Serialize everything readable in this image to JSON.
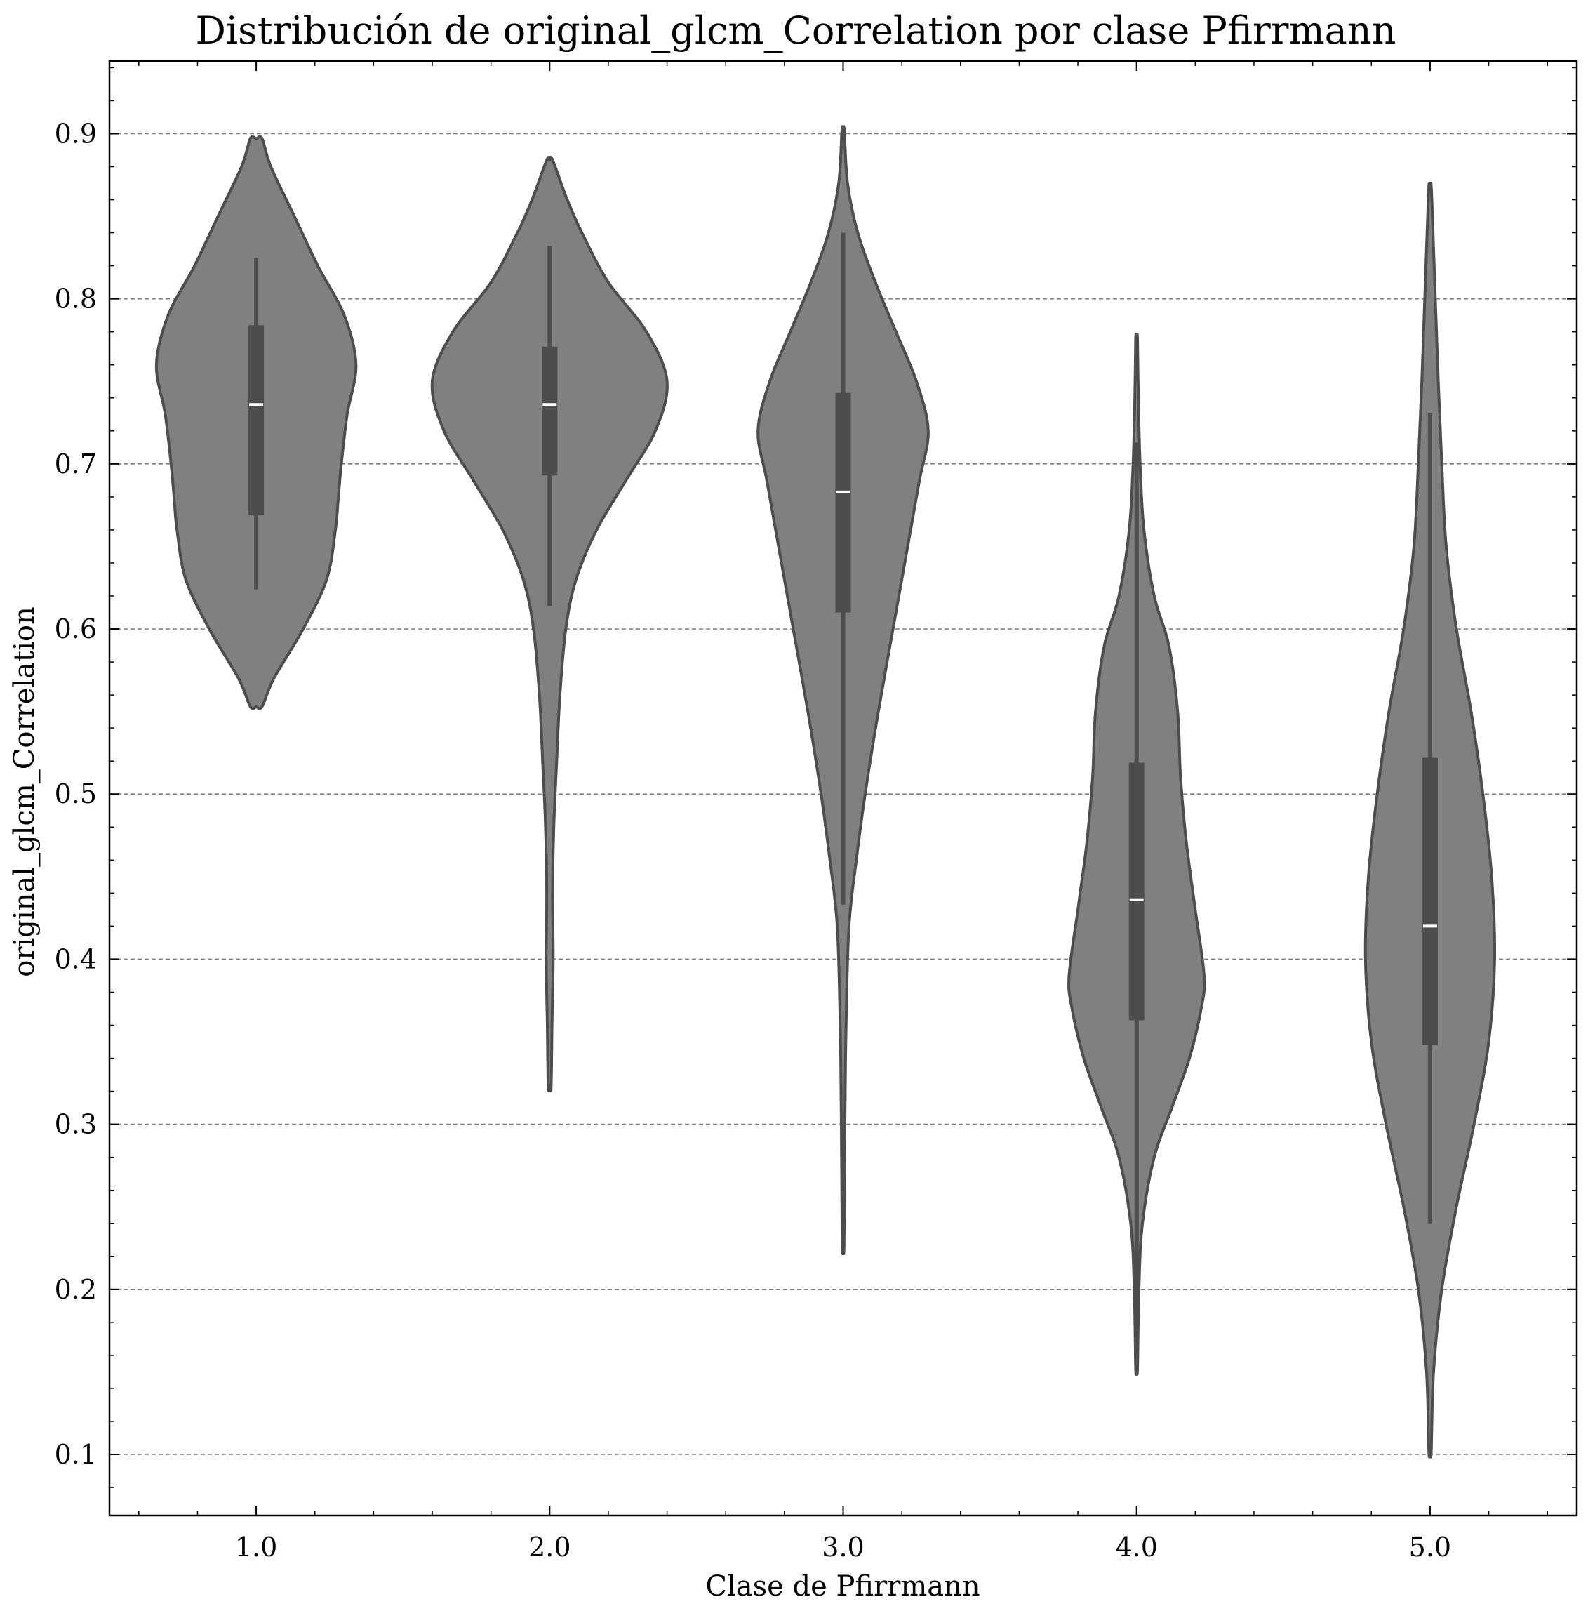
{
  "chart_data": {
    "type": "violin",
    "title": "Distribución de original_glcm_Correlation por clase Pfirrmann",
    "xlabel": "Clase de Pfirrmann",
    "ylabel": "original_glcm_Correlation",
    "categories": [
      "1.0",
      "2.0",
      "3.0",
      "4.0",
      "5.0"
    ],
    "ylim": [
      0.063,
      0.944
    ],
    "xlim": [
      0.5,
      5.5
    ],
    "yticks": [
      0.1,
      0.2,
      0.3,
      0.4,
      0.5,
      0.6,
      0.7,
      0.8,
      0.9
    ],
    "ytick_labels": [
      "0.1",
      "0.2",
      "0.3",
      "0.4",
      "0.5",
      "0.6",
      "0.7",
      "0.8",
      "0.9"
    ],
    "grid": "y-dashed",
    "colors": {
      "violin_fill": "#808080",
      "violin_edge": "#4d4d4d",
      "box": "#4d4d4d",
      "median": "#ffffff",
      "grid": "#808080"
    },
    "violins": [
      {
        "category": "1.0",
        "min": 0.553,
        "max": 0.897,
        "whisker_low": 0.624,
        "q1": 0.669,
        "median": 0.736,
        "q3": 0.784,
        "whisker_high": 0.825,
        "profile": [
          [
            0.553,
            0.02
          ],
          [
            0.57,
            0.06
          ],
          [
            0.6,
            0.16
          ],
          [
            0.63,
            0.24
          ],
          [
            0.66,
            0.27
          ],
          [
            0.68,
            0.28
          ],
          [
            0.7,
            0.29
          ],
          [
            0.73,
            0.31
          ],
          [
            0.76,
            0.34
          ],
          [
            0.79,
            0.3
          ],
          [
            0.82,
            0.21
          ],
          [
            0.85,
            0.13
          ],
          [
            0.88,
            0.05
          ],
          [
            0.897,
            0.02
          ]
        ]
      },
      {
        "category": "2.0",
        "min": 0.323,
        "max": 0.884,
        "whisker_low": 0.614,
        "q1": 0.693,
        "median": 0.736,
        "q3": 0.771,
        "whisker_high": 0.832,
        "profile": [
          [
            0.323,
            0.005
          ],
          [
            0.36,
            0.008
          ],
          [
            0.4,
            0.012
          ],
          [
            0.44,
            0.01
          ],
          [
            0.48,
            0.014
          ],
          [
            0.52,
            0.024
          ],
          [
            0.56,
            0.035
          ],
          [
            0.6,
            0.055
          ],
          [
            0.63,
            0.09
          ],
          [
            0.66,
            0.16
          ],
          [
            0.69,
            0.26
          ],
          [
            0.72,
            0.36
          ],
          [
            0.75,
            0.4
          ],
          [
            0.78,
            0.33
          ],
          [
            0.81,
            0.2
          ],
          [
            0.84,
            0.11
          ],
          [
            0.86,
            0.06
          ],
          [
            0.884,
            0.01
          ]
        ]
      },
      {
        "category": "3.0",
        "min": 0.227,
        "max": 0.902,
        "whisker_low": 0.433,
        "q1": 0.61,
        "median": 0.683,
        "q3": 0.743,
        "whisker_high": 0.84,
        "profile": [
          [
            0.227,
            0.003
          ],
          [
            0.3,
            0.006
          ],
          [
            0.36,
            0.01
          ],
          [
            0.42,
            0.02
          ],
          [
            0.46,
            0.045
          ],
          [
            0.5,
            0.075
          ],
          [
            0.55,
            0.12
          ],
          [
            0.6,
            0.17
          ],
          [
            0.65,
            0.22
          ],
          [
            0.69,
            0.26
          ],
          [
            0.72,
            0.29
          ],
          [
            0.75,
            0.25
          ],
          [
            0.78,
            0.18
          ],
          [
            0.81,
            0.11
          ],
          [
            0.84,
            0.05
          ],
          [
            0.87,
            0.015
          ],
          [
            0.902,
            0.004
          ]
        ]
      },
      {
        "category": "4.0",
        "min": 0.152,
        "max": 0.776,
        "whisker_low": 0.152,
        "q1": 0.363,
        "median": 0.436,
        "q3": 0.519,
        "whisker_high": 0.713,
        "profile": [
          [
            0.152,
            0.003
          ],
          [
            0.2,
            0.008
          ],
          [
            0.24,
            0.02
          ],
          [
            0.28,
            0.06
          ],
          [
            0.31,
            0.12
          ],
          [
            0.34,
            0.18
          ],
          [
            0.37,
            0.22
          ],
          [
            0.39,
            0.23
          ],
          [
            0.43,
            0.2
          ],
          [
            0.47,
            0.17
          ],
          [
            0.51,
            0.15
          ],
          [
            0.55,
            0.14
          ],
          [
            0.59,
            0.11
          ],
          [
            0.62,
            0.06
          ],
          [
            0.66,
            0.025
          ],
          [
            0.7,
            0.012
          ],
          [
            0.74,
            0.006
          ],
          [
            0.776,
            0.003
          ]
        ]
      },
      {
        "category": "5.0",
        "min": 0.102,
        "max": 0.868,
        "whisker_low": 0.24,
        "q1": 0.348,
        "median": 0.42,
        "q3": 0.522,
        "whisker_high": 0.731,
        "profile": [
          [
            0.102,
            0.004
          ],
          [
            0.15,
            0.012
          ],
          [
            0.2,
            0.04
          ],
          [
            0.25,
            0.09
          ],
          [
            0.3,
            0.15
          ],
          [
            0.35,
            0.2
          ],
          [
            0.4,
            0.22
          ],
          [
            0.45,
            0.21
          ],
          [
            0.5,
            0.18
          ],
          [
            0.55,
            0.14
          ],
          [
            0.6,
            0.09
          ],
          [
            0.65,
            0.055
          ],
          [
            0.7,
            0.04
          ],
          [
            0.75,
            0.028
          ],
          [
            0.8,
            0.018
          ],
          [
            0.84,
            0.01
          ],
          [
            0.868,
            0.004
          ]
        ]
      }
    ]
  }
}
